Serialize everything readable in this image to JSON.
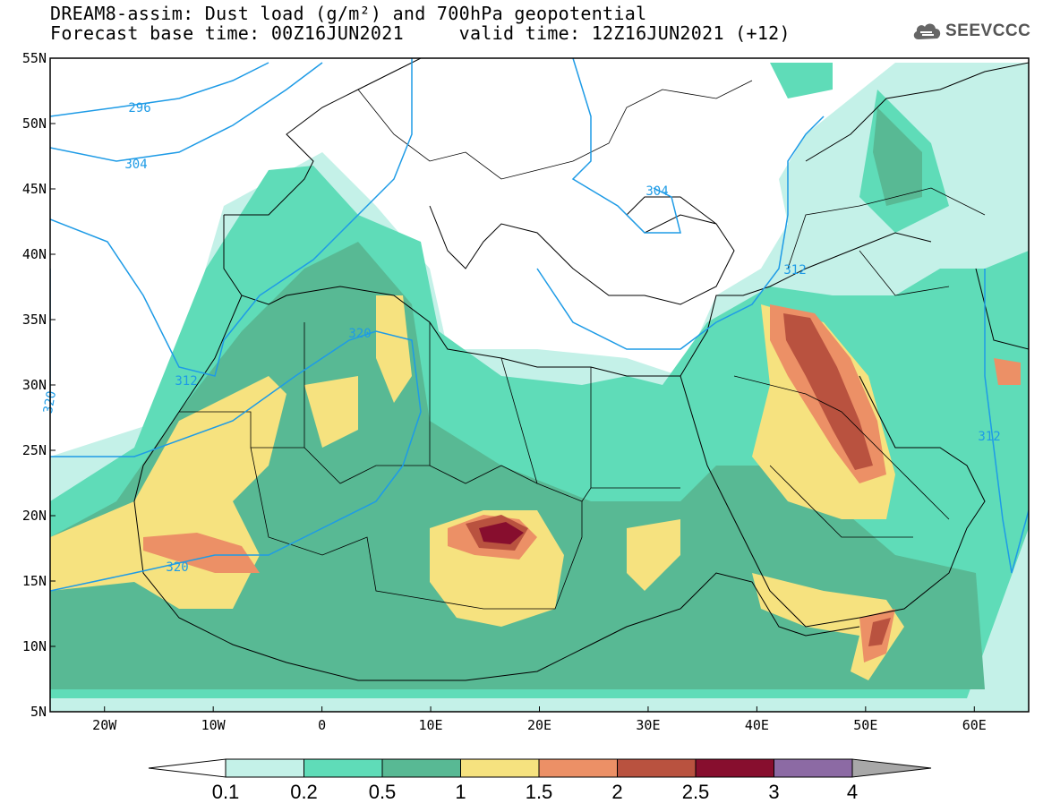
{
  "header": {
    "title_line1": "DREAM8-assim: Dust load (g/m²) and 700hPa geopotential",
    "title_line2": "Forecast base time: 00Z16JUN2021     valid time: 12Z16JUN2021 (+12)"
  },
  "logo": {
    "text": "SEEVCCC",
    "icon": "cloud-icon"
  },
  "map": {
    "lat_labels": [
      "55N",
      "50N",
      "45N",
      "40N",
      "35N",
      "30N",
      "25N",
      "20N",
      "15N",
      "10N",
      "5N"
    ],
    "lon_labels": [
      "20W",
      "10W",
      "0",
      "10E",
      "20E",
      "30E",
      "40E",
      "50E",
      "60E"
    ],
    "contour_labels": [
      "296",
      "304",
      "304",
      "312",
      "312",
      "312",
      "320",
      "320",
      "320"
    ],
    "field_colors": [
      "#bff0e6",
      "#5fdcb8",
      "#5bbd95",
      "#f4e07a",
      "#e88e62",
      "#b44a3a",
      "#8a1030",
      "#8a6aa0"
    ]
  },
  "colorbar": {
    "levels": [
      "0.1",
      "0.2",
      "0.5",
      "1",
      "1.5",
      "2",
      "2.5",
      "3",
      "4"
    ],
    "colors": [
      "#c4f1e8",
      "#5fdcb8",
      "#58b994",
      "#f6e27f",
      "#ec9066",
      "#b9523f",
      "#870e2e",
      "#8c6aa4"
    ],
    "under_color": "#ffffff",
    "over_color": "#a8a8a8"
  }
}
